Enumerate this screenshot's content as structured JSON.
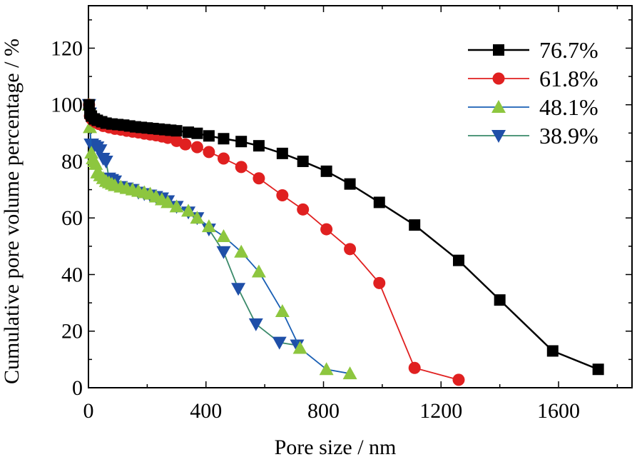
{
  "chart_data": {
    "type": "line",
    "title": "",
    "xlabel": "Pore size / nm",
    "ylabel": "Cumulative pore volume percentage / %",
    "xlim": [
      0,
      1850
    ],
    "ylim": [
      0,
      135
    ],
    "xticks": [
      0,
      400,
      800,
      1200,
      1600
    ],
    "xtick_labels": [
      "0",
      "400",
      "800",
      "1200",
      "1600"
    ],
    "yticks": [
      0,
      20,
      40,
      60,
      80,
      100,
      120
    ],
    "ytick_labels": [
      "0",
      "20",
      "40",
      "60",
      "80",
      "100",
      "120"
    ],
    "grid": false,
    "legend": "top-right",
    "series": [
      {
        "name": "76.7%",
        "color": "#000000",
        "marker": "square",
        "x": [
          2,
          5,
          10,
          20,
          30,
          45,
          60,
          80,
          100,
          120,
          140,
          160,
          180,
          200,
          220,
          240,
          260,
          280,
          300,
          340,
          370,
          410,
          460,
          520,
          580,
          660,
          730,
          810,
          890,
          990,
          1110,
          1260,
          1400,
          1580,
          1735
        ],
        "y": [
          100,
          97,
          96,
          95,
          94.5,
          94,
          93.5,
          93.2,
          93,
          92.8,
          92.5,
          92.2,
          92,
          91.8,
          91.6,
          91.4,
          91.2,
          91,
          90.8,
          90.3,
          89.9,
          89,
          88,
          87,
          85.5,
          82.8,
          80,
          76.5,
          72,
          65.5,
          57.5,
          45,
          31,
          13,
          6.5
        ]
      },
      {
        "name": "61.8%",
        "color": "#e02020",
        "marker": "circle",
        "x": [
          2,
          5,
          10,
          15,
          25,
          35,
          50,
          70,
          90,
          110,
          130,
          150,
          170,
          190,
          210,
          230,
          250,
          270,
          300,
          330,
          370,
          410,
          460,
          520,
          580,
          660,
          730,
          810,
          890,
          990,
          1110,
          1260
        ],
        "y": [
          100,
          96,
          95,
          94.5,
          93.8,
          93.2,
          92.5,
          92,
          91.5,
          91.2,
          90.8,
          90.5,
          90.2,
          89.8,
          89.5,
          89.2,
          88.8,
          88.3,
          87.2,
          86,
          85,
          83.3,
          81,
          78,
          74,
          68,
          63,
          56,
          49,
          37,
          7,
          2.8
        ]
      },
      {
        "name": "48.1%",
        "color": "#1a5fb4",
        "marker": "triangle-up",
        "marker_color": "#8dc63f",
        "x": [
          2,
          5,
          10,
          15,
          20,
          25,
          30,
          40,
          50,
          60,
          70,
          80,
          90,
          110,
          130,
          150,
          170,
          190,
          210,
          230,
          250,
          270,
          300,
          340,
          370,
          410,
          460,
          520,
          580,
          660,
          720,
          810,
          890
        ],
        "y": [
          100,
          92,
          83,
          81,
          80,
          79,
          76,
          75,
          74,
          73,
          72.5,
          72,
          71.5,
          71,
          70.5,
          70,
          69.5,
          69,
          68.5,
          67.5,
          66.5,
          65.5,
          64,
          62.5,
          60,
          57,
          53.5,
          48,
          41,
          27,
          14,
          6.5,
          5
        ]
      },
      {
        "name": "38.9%",
        "color": "#3a8a6a",
        "marker": "triangle-down",
        "marker_color": "#1f4fa8",
        "x": [
          2,
          5,
          8,
          12,
          20,
          30,
          40,
          50,
          60,
          70,
          80,
          90,
          110,
          130,
          150,
          170,
          190,
          210,
          230,
          250,
          270,
          300,
          340,
          370,
          410,
          460,
          510,
          570,
          650,
          710
        ],
        "y": [
          100,
          97,
          86,
          86,
          85.5,
          85,
          84,
          81,
          80,
          74,
          73.5,
          73,
          71,
          70.5,
          70,
          69,
          68.5,
          68,
          67.5,
          67,
          66,
          64,
          62,
          60,
          56,
          48,
          35,
          22.5,
          16,
          15
        ]
      }
    ]
  }
}
